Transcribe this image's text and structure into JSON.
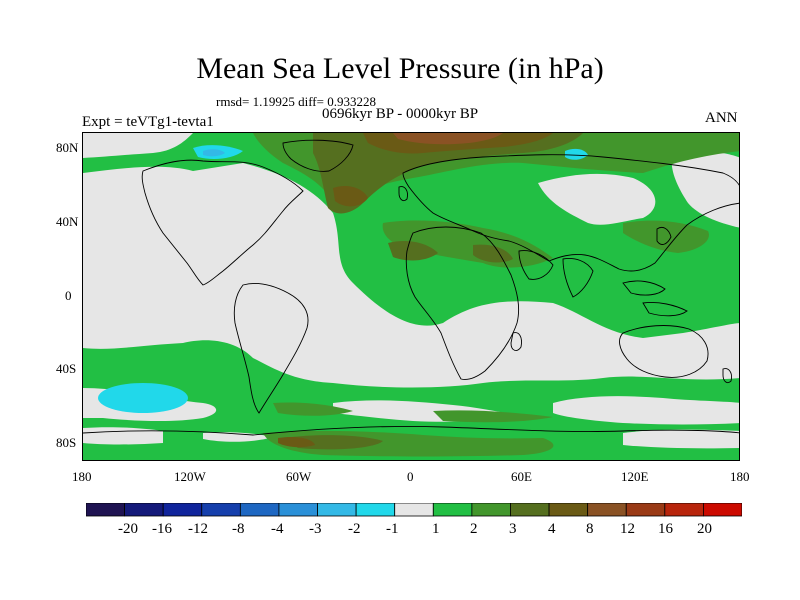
{
  "title": "Mean Sea Level Pressure (in hPa)",
  "stats_line": "rmsd= 1.19925 diff= 0.933228",
  "period": "0696kyr BP - 0000kyr BP",
  "experiment": "Expt = teVTg1-tevta1",
  "season": "ANN",
  "axes": {
    "lat_labels": [
      "80N",
      "40N",
      "0",
      "40S",
      "80S"
    ],
    "lon_labels": [
      "180",
      "120W",
      "60W",
      "0",
      "60E",
      "120E",
      "180"
    ]
  },
  "colorbar": {
    "colors": [
      "#1f1352",
      "#141a7a",
      "#10249c",
      "#153fac",
      "#1e67c2",
      "#2a90d8",
      "#33b9e6",
      "#21d8ea",
      "#e6e6e6",
      "#22bf44",
      "#42962c",
      "#556f1f",
      "#6a5a15",
      "#8a5224",
      "#9a3a16",
      "#b8250c",
      "#cc0a00"
    ],
    "labels": [
      "-20",
      "-16",
      "-12",
      "-8",
      "-4",
      "-3",
      "-2",
      "-1",
      "1",
      "2",
      "3",
      "4",
      "8",
      "12",
      "16",
      "20"
    ]
  },
  "colors": {
    "near_zero": "#e6e6e6",
    "positive_1_2": "#22bf44",
    "positive_2_3": "#42962c",
    "positive_3_4": "#556f1f",
    "positive_4_8": "#6a5a15",
    "positive_8_12": "#8a5224",
    "negative_1_2": "#21d8ea",
    "negative_2_3": "#33b9e6"
  }
}
